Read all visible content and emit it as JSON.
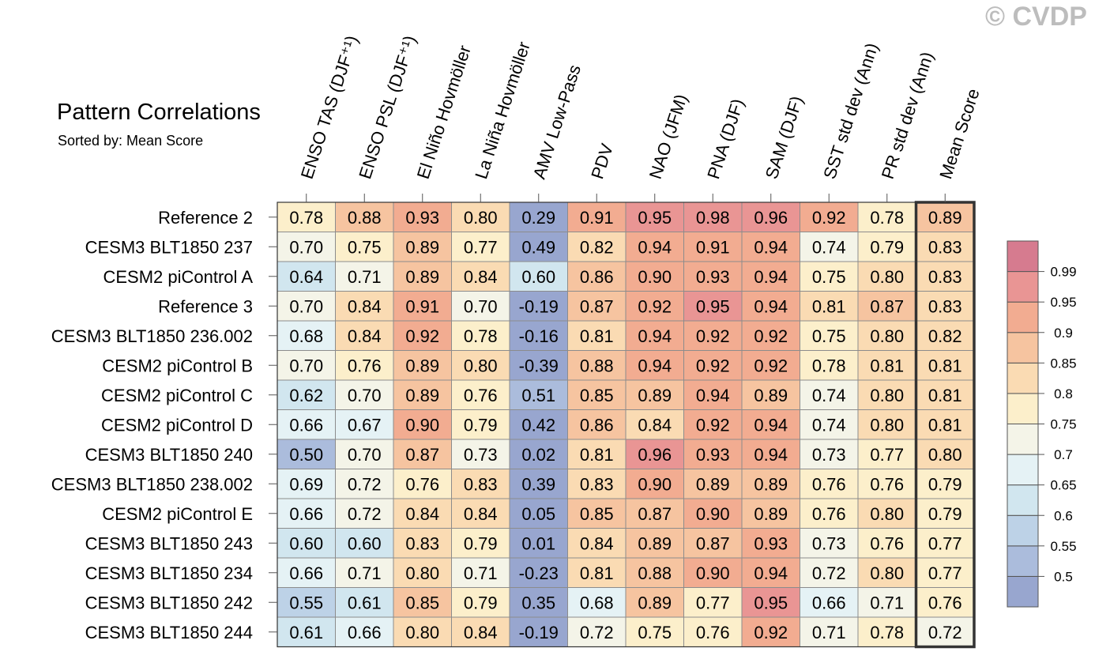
{
  "watermark": "© CVDP",
  "chart_data": {
    "type": "heatmap",
    "title": "Pattern Correlations",
    "subtitle": "Sorted by: Mean Score",
    "columns": [
      "ENSO TAS (DJF⁺¹)",
      "ENSO PSL (DJF⁺¹)",
      "El Niño Hovmöller",
      "La Niña Hovmöller",
      "AMV Low-Pass",
      "PDV",
      "NAO (JFM)",
      "PNA (DJF)",
      "SAM (DJF)",
      "SST std dev (Ann)",
      "PR std dev (Ann)",
      "Mean Score"
    ],
    "rows": [
      "Reference 2",
      "CESM3 BLT1850 237",
      "CESM2 piControl A",
      "Reference 3",
      "CESM3 BLT1850 236.002",
      "CESM2 piControl B",
      "CESM2 piControl C",
      "CESM2 piControl D",
      "CESM3 BLT1850 240",
      "CESM3 BLT1850 238.002",
      "CESM2 piControl E",
      "CESM3 BLT1850 243",
      "CESM3 BLT1850 234",
      "CESM3 BLT1850 242",
      "CESM3 BLT1850 244"
    ],
    "values": [
      [
        "0.78",
        "0.88",
        "0.93",
        "0.80",
        "0.29",
        "0.91",
        "0.95",
        "0.98",
        "0.96",
        "0.92",
        "0.78",
        "0.89"
      ],
      [
        "0.70",
        "0.75",
        "0.89",
        "0.77",
        "0.49",
        "0.82",
        "0.94",
        "0.91",
        "0.94",
        "0.74",
        "0.79",
        "0.83"
      ],
      [
        "0.64",
        "0.71",
        "0.89",
        "0.84",
        "0.60",
        "0.86",
        "0.90",
        "0.93",
        "0.94",
        "0.75",
        "0.80",
        "0.83"
      ],
      [
        "0.70",
        "0.84",
        "0.91",
        "0.70",
        "-0.19",
        "0.87",
        "0.92",
        "0.95",
        "0.94",
        "0.81",
        "0.87",
        "0.83"
      ],
      [
        "0.68",
        "0.84",
        "0.92",
        "0.78",
        "-0.16",
        "0.81",
        "0.94",
        "0.92",
        "0.92",
        "0.75",
        "0.80",
        "0.82"
      ],
      [
        "0.70",
        "0.76",
        "0.89",
        "0.80",
        "-0.39",
        "0.88",
        "0.94",
        "0.92",
        "0.92",
        "0.78",
        "0.81",
        "0.81"
      ],
      [
        "0.62",
        "0.70",
        "0.89",
        "0.76",
        "0.51",
        "0.85",
        "0.89",
        "0.94",
        "0.89",
        "0.74",
        "0.80",
        "0.81"
      ],
      [
        "0.66",
        "0.67",
        "0.90",
        "0.79",
        "0.42",
        "0.86",
        "0.84",
        "0.92",
        "0.94",
        "0.74",
        "0.80",
        "0.81"
      ],
      [
        "0.50",
        "0.70",
        "0.87",
        "0.73",
        "0.02",
        "0.81",
        "0.96",
        "0.93",
        "0.94",
        "0.73",
        "0.77",
        "0.80"
      ],
      [
        "0.69",
        "0.72",
        "0.76",
        "0.83",
        "0.39",
        "0.83",
        "0.90",
        "0.89",
        "0.89",
        "0.76",
        "0.76",
        "0.79"
      ],
      [
        "0.66",
        "0.72",
        "0.84",
        "0.84",
        "0.05",
        "0.85",
        "0.87",
        "0.90",
        "0.89",
        "0.76",
        "0.80",
        "0.79"
      ],
      [
        "0.60",
        "0.60",
        "0.83",
        "0.79",
        "0.01",
        "0.84",
        "0.89",
        "0.87",
        "0.93",
        "0.73",
        "0.76",
        "0.77"
      ],
      [
        "0.66",
        "0.71",
        "0.80",
        "0.71",
        "-0.23",
        "0.81",
        "0.88",
        "0.90",
        "0.94",
        "0.72",
        "0.80",
        "0.77"
      ],
      [
        "0.55",
        "0.61",
        "0.85",
        "0.79",
        "0.35",
        "0.68",
        "0.89",
        "0.77",
        "0.95",
        "0.66",
        "0.71",
        "0.76"
      ],
      [
        "0.61",
        "0.66",
        "0.80",
        "0.84",
        "-0.19",
        "0.72",
        "0.75",
        "0.76",
        "0.92",
        "0.71",
        "0.78",
        "0.72"
      ]
    ],
    "colorbar": {
      "levels": [
        "0.5",
        "0.55",
        "0.6",
        "0.65",
        "0.7",
        "0.75",
        "0.8",
        "0.85",
        "0.9",
        "0.95",
        "0.99"
      ],
      "colors": [
        "#98a6cf",
        "#abbcdc",
        "#bdd2e7",
        "#d1e6ef",
        "#e5f2f5",
        "#f4f4e8",
        "#fcefcb",
        "#fadbb3",
        "#f6c4a0",
        "#f2ac91",
        "#e99594",
        "#d67b8f"
      ]
    },
    "highlight_column": "Mean Score"
  }
}
